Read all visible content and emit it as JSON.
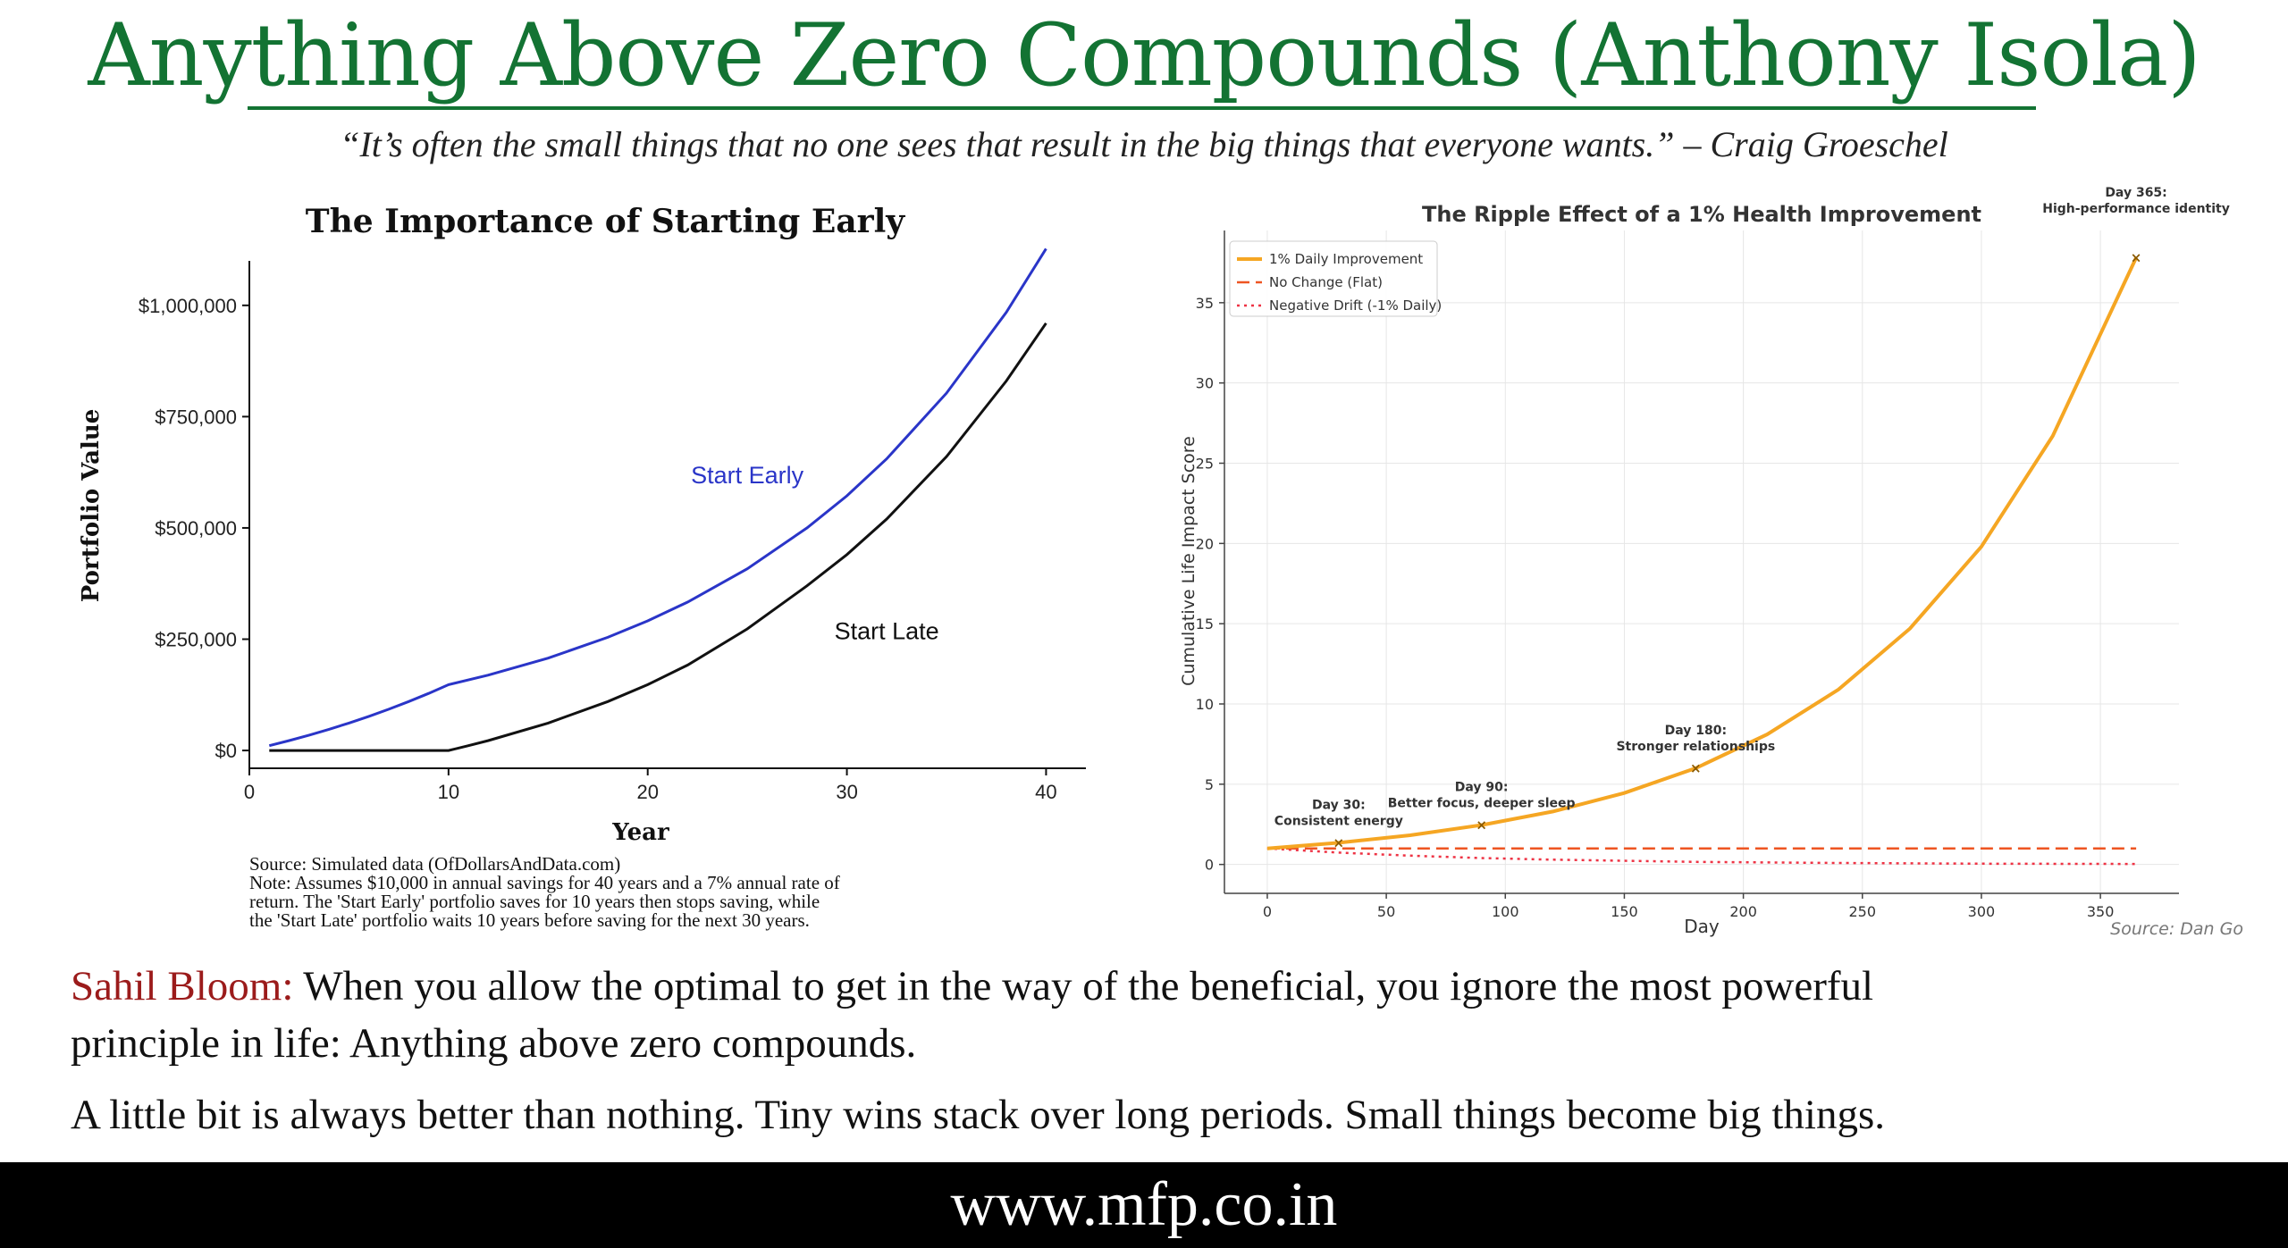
{
  "header": {
    "title": "Anything Above Zero Compounds (Anthony Isola)",
    "quote": "“It’s often the small things that no one sees that result in the big things that everyone wants.” – Craig Groeschel"
  },
  "left_notes": {
    "source": "Source: Simulated data (OfDollarsAndData.com)",
    "note_lines": [
      "Note: Assumes $10,000 in annual savings for 40 years and a 7% annual rate of",
      "return. The 'Start Early' portfolio saves for 10 years then stops saving, while",
      "the 'Start Late' portfolio waits 10 years before saving for the next 30 years."
    ]
  },
  "right_source": "Source: Dan Go",
  "body": {
    "speaker": "Sahil Bloom:",
    "line1": " When you allow the optimal to get in the way of the beneficial, you ignore the most powerful",
    "line2": "principle in life: Anything above zero compounds.",
    "line3": "A little bit is always better than nothing. Tiny wins stack over long periods. Small things become big things."
  },
  "footer": {
    "url": "www.mfp.co.in"
  },
  "chart_data": [
    {
      "type": "line",
      "title": "The Importance of Starting Early",
      "xlabel": "Year",
      "ylabel": "Portfolio Value",
      "xlim": [
        0,
        42
      ],
      "ylim": [
        -40000,
        1100000
      ],
      "xticks": [
        0,
        10,
        20,
        30,
        40
      ],
      "yticks": [
        {
          "value": 0,
          "label": "$0"
        },
        {
          "value": 250000,
          "label": "$250,000"
        },
        {
          "value": 500000,
          "label": "$500,000"
        },
        {
          "value": 750000,
          "label": "$750,000"
        },
        {
          "value": 1000000,
          "label": "$1,000,000"
        }
      ],
      "grid": false,
      "series": [
        {
          "name": "Start Early",
          "color": "#2a35c8",
          "label_at": [
            25,
            600000
          ],
          "x": [
            1,
            2,
            3,
            4,
            5,
            6,
            7,
            8,
            9,
            10,
            12,
            15,
            18,
            20,
            22,
            25,
            28,
            30,
            32,
            35,
            38,
            40
          ],
          "values": [
            10700,
            22150,
            34400,
            47500,
            61500,
            76550,
            92650,
            109850,
            128250,
            147850,
            169300,
            207400,
            254300,
            291100,
            333300,
            408200,
            500100,
            572200,
            655300,
            802700,
            984200,
            1127300
          ]
        },
        {
          "name": "Start Late",
          "color": "#111111",
          "label_at": [
            32,
            250000
          ],
          "x": [
            1,
            5,
            10,
            11,
            12,
            15,
            18,
            20,
            22,
            25,
            28,
            30,
            32,
            35,
            38,
            40
          ],
          "values": [
            0,
            0,
            0,
            10700,
            22150,
            61500,
            109850,
            147850,
            191900,
            273000,
            370000,
            440000,
            520000,
            660000,
            830000,
            960000
          ]
        }
      ]
    },
    {
      "type": "line",
      "title": "The Ripple Effect of a 1% Health Improvement",
      "xlabel": "Day",
      "ylabel": "Cumulative Life Impact Score",
      "xlim": [
        -18,
        383
      ],
      "ylim": [
        -1.8,
        39.5
      ],
      "xticks": [
        0,
        50,
        100,
        150,
        200,
        250,
        300,
        350
      ],
      "yticks": [
        0,
        5,
        10,
        15,
        20,
        25,
        30,
        35
      ],
      "grid": true,
      "legend": "top-left",
      "series": [
        {
          "name": "1% Daily Improvement",
          "color": "#f5a623",
          "style": "solid",
          "x": [
            0,
            30,
            60,
            90,
            120,
            150,
            180,
            210,
            240,
            270,
            300,
            330,
            365
          ],
          "values": [
            1.0,
            1.35,
            1.82,
            2.45,
            3.3,
            4.45,
            6.0,
            8.1,
            10.9,
            14.7,
            19.8,
            26.7,
            37.8
          ]
        },
        {
          "name": "No Change (Flat)",
          "color": "#ee5522",
          "style": "dashed",
          "x": [
            0,
            365
          ],
          "values": [
            1.0,
            1.0
          ]
        },
        {
          "name": "Negative Drift (-1% Daily)",
          "color": "#ee3344",
          "style": "dotted",
          "x": [
            0,
            30,
            60,
            90,
            120,
            180,
            240,
            300,
            365
          ],
          "values": [
            1.0,
            0.74,
            0.55,
            0.4,
            0.3,
            0.16,
            0.09,
            0.05,
            0.03
          ]
        }
      ],
      "annotations": [
        {
          "day": 30,
          "value": 1.35,
          "lines": [
            "Day 30:",
            "Consistent energy"
          ]
        },
        {
          "day": 90,
          "value": 2.45,
          "lines": [
            "Day 90:",
            "Better focus, deeper sleep"
          ]
        },
        {
          "day": 180,
          "value": 6.0,
          "lines": [
            "Day 180:",
            "Stronger relationships"
          ]
        },
        {
          "day": 365,
          "value": 37.8,
          "lines": [
            "Day 365:",
            "High-performance identity"
          ]
        }
      ]
    }
  ]
}
